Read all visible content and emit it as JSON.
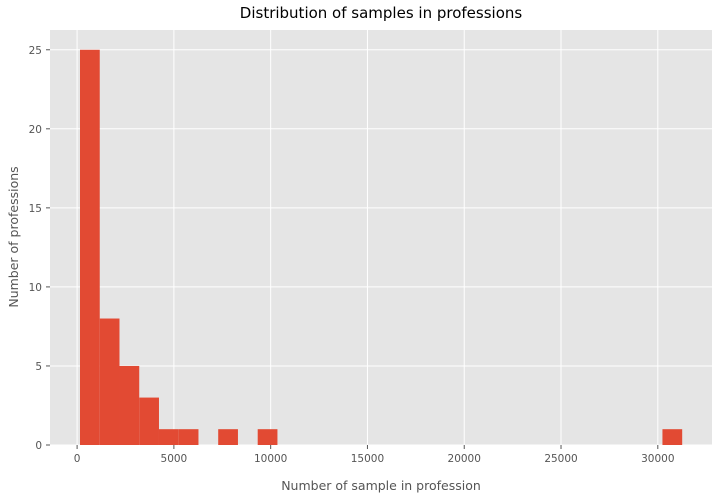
{
  "chart_data": {
    "type": "histogram",
    "title": "Distribution of samples in professions",
    "xlabel": "Number of sample in profession",
    "ylabel": "Number of professions",
    "xlim": [
      -1400,
      32800
    ],
    "ylim": [
      0,
      26.25
    ],
    "xticks": [
      0,
      5000,
      10000,
      15000,
      20000,
      25000,
      30000
    ],
    "yticks": [
      0,
      5,
      10,
      15,
      20,
      25
    ],
    "bin_width": 1020,
    "bins": [
      {
        "x0": 150,
        "x1": 1170,
        "count": 25
      },
      {
        "x0": 1170,
        "x1": 2190,
        "count": 8
      },
      {
        "x0": 2190,
        "x1": 3210,
        "count": 5
      },
      {
        "x0": 3210,
        "x1": 4230,
        "count": 3
      },
      {
        "x0": 4230,
        "x1": 5250,
        "count": 1
      },
      {
        "x0": 5250,
        "x1": 6270,
        "count": 1
      },
      {
        "x0": 7290,
        "x1": 8310,
        "count": 1
      },
      {
        "x0": 9330,
        "x1": 10350,
        "count": 1
      },
      {
        "x0": 30240,
        "x1": 31260,
        "count": 1
      }
    ],
    "bar_color": "#E24A33",
    "background_color": "#E5E5E5",
    "grid": true,
    "grid_color": "#FFFFFF"
  }
}
